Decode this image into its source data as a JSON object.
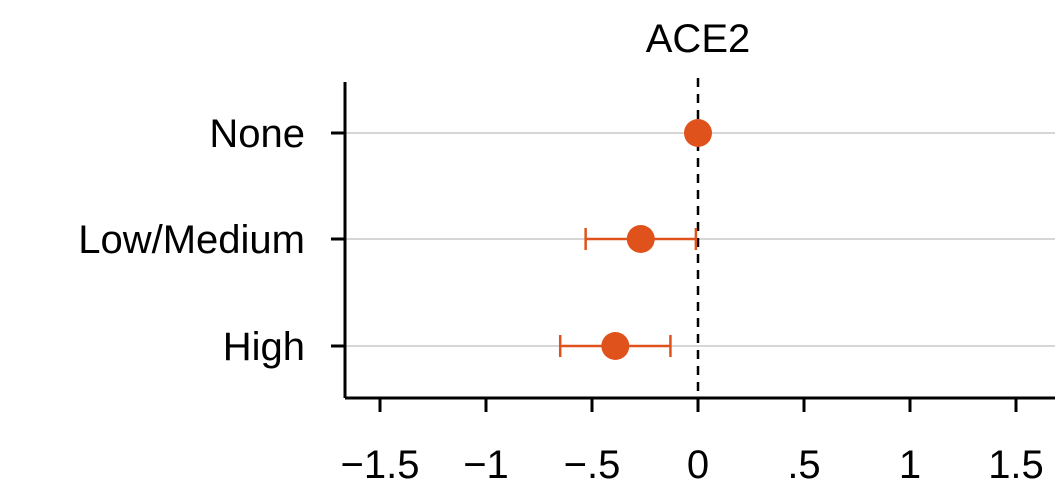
{
  "chart_data": {
    "type": "scatter",
    "title": "ACE2",
    "categories": [
      "None",
      "Low/Medium",
      "High"
    ],
    "estimates": [
      0.0,
      -0.27,
      -0.39
    ],
    "ci_lower": [
      null,
      -0.53,
      -0.65
    ],
    "ci_upper": [
      null,
      -0.01,
      -0.13
    ],
    "xlim": [
      -1.65,
      1.65
    ],
    "x_ticks": [
      -1.5,
      -1,
      -0.5,
      0,
      0.5,
      1,
      1.5
    ],
    "x_tick_labels": [
      "−1.5",
      "−1",
      "−.5",
      "0",
      ".5",
      "1",
      "1.5"
    ],
    "reference_line": 0,
    "grid": "horizontal",
    "colors": {
      "marker": "#e0521c",
      "grid": "#c8c8c8",
      "axis": "#000000"
    }
  }
}
